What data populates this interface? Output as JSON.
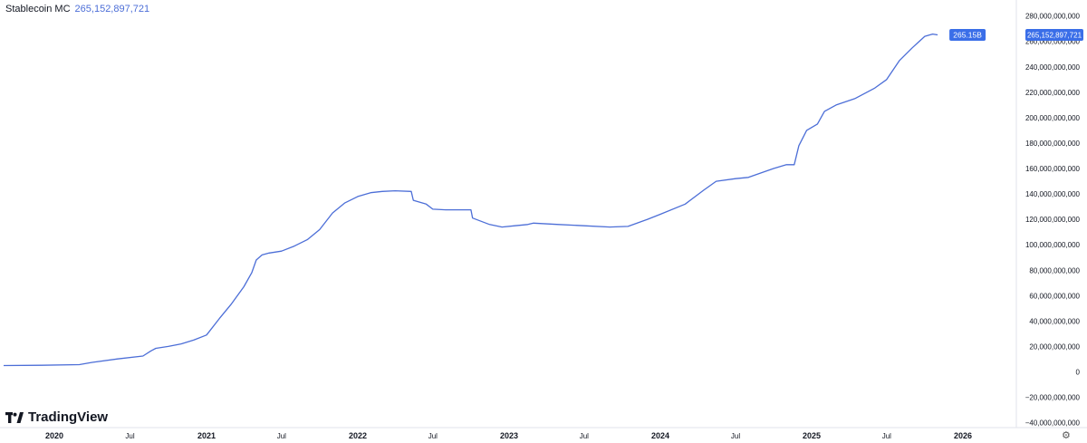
{
  "legend": {
    "symbol": "Stablecoin MC",
    "value": "265,152,897,721"
  },
  "logo_text": "TradingView",
  "price_badge": "265,152,897,721",
  "last_label": "265.15B",
  "colors": {
    "line": "#4c6ed7",
    "badge": "#3a6ee8"
  },
  "chart_data": {
    "type": "line",
    "title": "Stablecoin MC",
    "x_ticks": [
      "2020",
      "Jul",
      "2021",
      "Jul",
      "2022",
      "Jul",
      "2023",
      "Jul",
      "2024",
      "Jul",
      "2025",
      "Jul",
      "2026"
    ],
    "y_ticks": [
      "280,000,000,000",
      "260,000,000,000",
      "240,000,000,000",
      "220,000,000,000",
      "200,000,000,000",
      "180,000,000,000",
      "160,000,000,000",
      "140,000,000,000",
      "120,000,000,000",
      "100,000,000,000",
      "80,000,000,000",
      "60,000,000,000",
      "40,000,000,000",
      "20,000,000,000",
      "0",
      "−20,000,000,000",
      "−40,000,000,000"
    ],
    "ylim": [
      -40000000000,
      280000000000
    ],
    "grid": false,
    "series": [
      {
        "name": "Stablecoin MC",
        "points": [
          [
            "2019-09-01",
            5000000000.0
          ],
          [
            "2019-12-01",
            5200000000.0
          ],
          [
            "2020-03-01",
            5700000000.0
          ],
          [
            "2020-04-01",
            7500000000.0
          ],
          [
            "2020-06-01",
            10200000000.0
          ],
          [
            "2020-08-01",
            12500000000.0
          ],
          [
            "2020-08-20",
            16500000000.0
          ],
          [
            "2020-09-01",
            18500000000.0
          ],
          [
            "2020-10-01",
            20000000000.0
          ],
          [
            "2020-11-01",
            22000000000.0
          ],
          [
            "2020-12-01",
            25000000000.0
          ],
          [
            "2021-01-01",
            29000000000.0
          ],
          [
            "2021-02-01",
            42000000000.0
          ],
          [
            "2021-03-01",
            53000000000.0
          ],
          [
            "2021-04-01",
            67000000000.0
          ],
          [
            "2021-04-20",
            78000000000.0
          ],
          [
            "2021-05-01",
            88000000000.0
          ],
          [
            "2021-05-15",
            92000000000.0
          ],
          [
            "2021-06-01",
            93500000000.0
          ],
          [
            "2021-07-01",
            95000000000.0
          ],
          [
            "2021-08-01",
            99000000000.0
          ],
          [
            "2021-09-01",
            104000000000.0
          ],
          [
            "2021-10-01",
            112000000000.0
          ],
          [
            "2021-11-01",
            125000000000.0
          ],
          [
            "2021-12-01",
            133000000000.0
          ],
          [
            "2022-01-01",
            138000000000.0
          ],
          [
            "2022-02-01",
            141000000000.0
          ],
          [
            "2022-03-01",
            142000000000.0
          ],
          [
            "2022-04-01",
            142500000000.0
          ],
          [
            "2022-05-10",
            142000000000.0
          ],
          [
            "2022-05-15",
            135000000000.0
          ],
          [
            "2022-06-15",
            132000000000.0
          ],
          [
            "2022-07-01",
            128000000000.0
          ],
          [
            "2022-08-01",
            127500000000.0
          ],
          [
            "2022-09-01",
            127500000000.0
          ],
          [
            "2022-10-01",
            127500000000.0
          ],
          [
            "2022-10-05",
            121000000000.0
          ],
          [
            "2022-11-15",
            116000000000.0
          ],
          [
            "2022-12-15",
            114000000000.0
          ],
          [
            "2023-01-15",
            115000000000.0
          ],
          [
            "2023-02-15",
            116000000000.0
          ],
          [
            "2023-03-01",
            117000000000.0
          ],
          [
            "2023-05-01",
            116000000000.0
          ],
          [
            "2023-07-01",
            115000000000.0
          ],
          [
            "2023-09-01",
            114000000000.0
          ],
          [
            "2023-10-15",
            114500000000.0
          ],
          [
            "2023-12-01",
            120000000000.0
          ],
          [
            "2024-01-01",
            124000000000.0
          ],
          [
            "2024-03-01",
            132000000000.0
          ],
          [
            "2024-04-15",
            143000000000.0
          ],
          [
            "2024-05-15",
            150000000000.0
          ],
          [
            "2024-07-01",
            152000000000.0
          ],
          [
            "2024-08-01",
            153000000000.0
          ],
          [
            "2024-10-01",
            160000000000.0
          ],
          [
            "2024-11-01",
            163000000000.0
          ],
          [
            "2024-11-20",
            163000000000.0
          ],
          [
            "2024-12-01",
            178000000000.0
          ],
          [
            "2024-12-20",
            190000000000.0
          ],
          [
            "2025-01-15",
            195000000000.0
          ],
          [
            "2025-02-01",
            205000000000.0
          ],
          [
            "2025-03-01",
            210000000000.0
          ],
          [
            "2025-04-15",
            215000000000.0
          ],
          [
            "2025-06-01",
            223000000000.0
          ],
          [
            "2025-07-01",
            230000000000.0
          ],
          [
            "2025-08-01",
            245000000000.0
          ],
          [
            "2025-09-01",
            255000000000.0
          ],
          [
            "2025-10-01",
            264000000000.0
          ],
          [
            "2025-10-20",
            265800000000.0
          ],
          [
            "2025-11-01",
            265150000000.0
          ]
        ]
      }
    ]
  }
}
